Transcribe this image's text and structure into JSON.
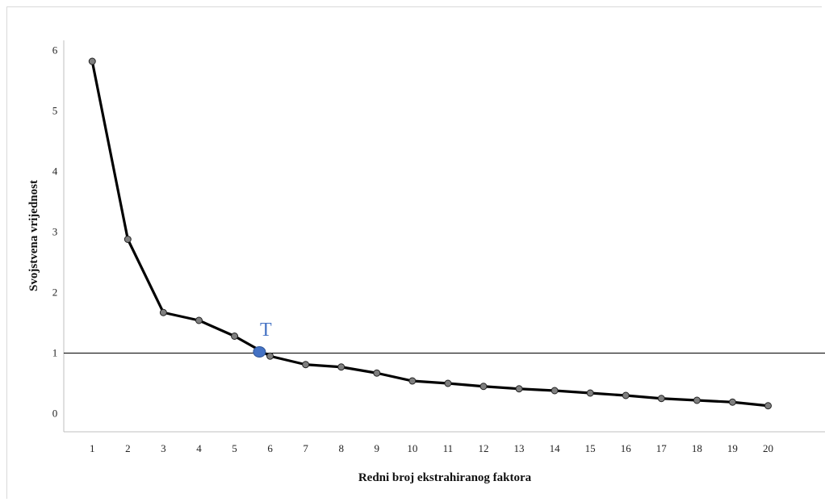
{
  "chart_data": {
    "type": "line",
    "title": "",
    "xlabel": "Redni broj ekstrahiranog faktora",
    "ylabel": "Svojstvena vrijednost",
    "x": [
      1,
      2,
      3,
      4,
      5,
      6,
      7,
      8,
      9,
      10,
      11,
      12,
      13,
      14,
      15,
      16,
      17,
      18,
      19,
      20
    ],
    "x_tick_labels": [
      "1",
      "2",
      "3",
      "4",
      "5",
      "6",
      "7",
      "8",
      "9",
      "10",
      "11",
      "12",
      "13",
      "14",
      "15",
      "16",
      "17",
      "18",
      "19",
      "20"
    ],
    "series": [
      {
        "values": [
          5.82,
          2.88,
          1.67,
          1.54,
          1.28,
          0.95,
          0.81,
          0.77,
          0.67,
          0.54,
          0.5,
          0.45,
          0.41,
          0.38,
          0.34,
          0.3,
          0.25,
          0.22,
          0.19,
          0.13
        ]
      }
    ],
    "y_ticks": [
      0,
      1,
      2,
      3,
      4,
      5,
      6
    ],
    "ylim": [
      -0.3,
      6.3
    ],
    "xlim": [
      0.2,
      21.6
    ],
    "reference_line": {
      "y": 1
    },
    "annotation": {
      "text": "T",
      "x": 5.7,
      "y": 1.02
    },
    "grid": false,
    "legend": "none",
    "colors": {
      "line": "#000000",
      "marker": "#7f7f7f",
      "annotation": "#4472c4",
      "axis": "#bfbfbf"
    }
  }
}
